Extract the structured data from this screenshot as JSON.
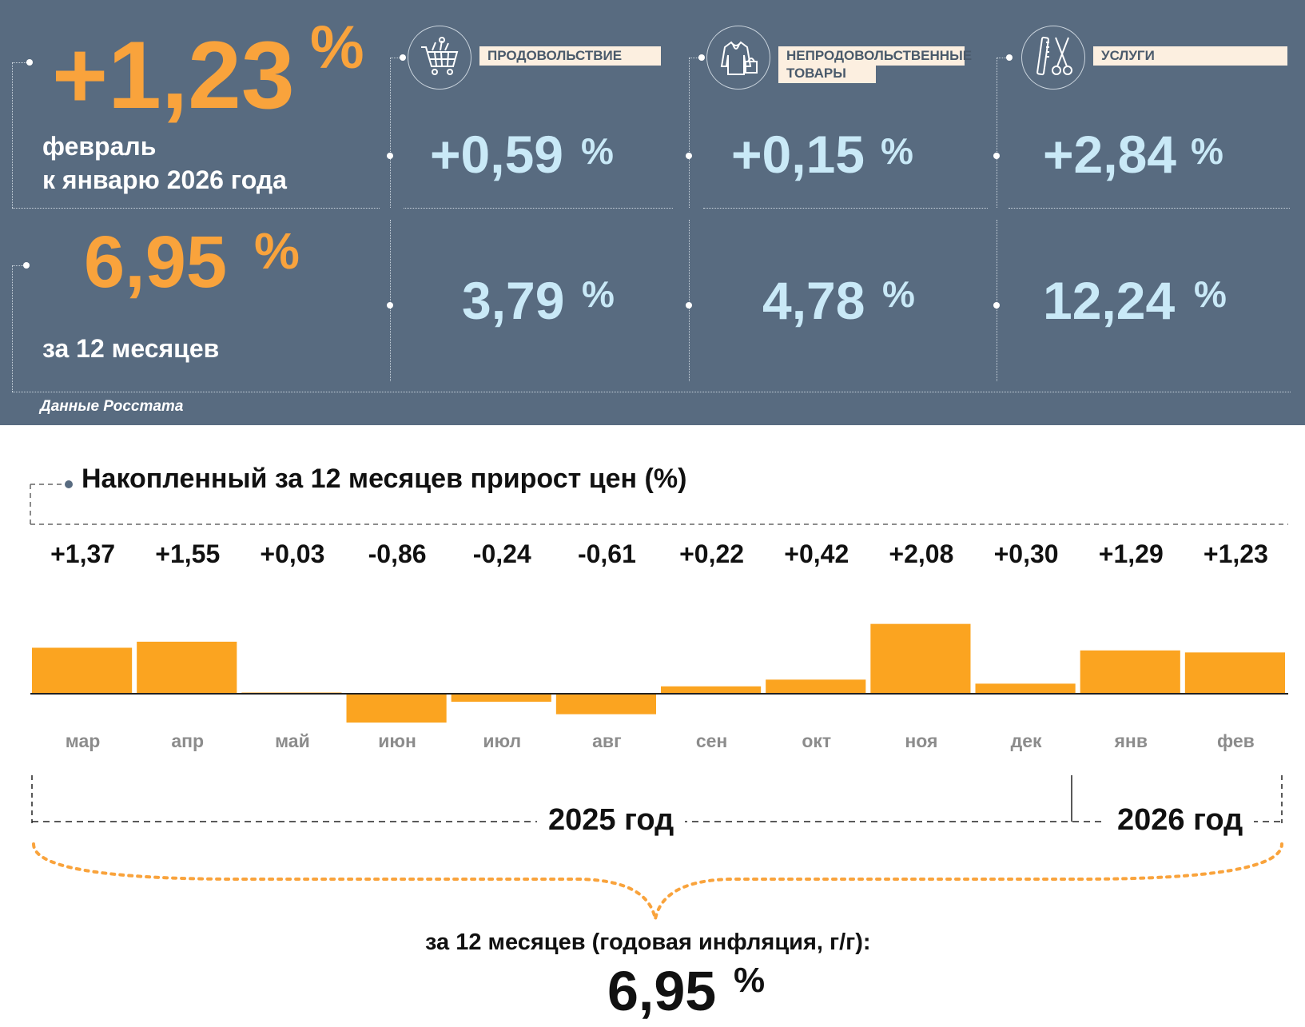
{
  "header": {
    "monthly": {
      "value": "+1,23",
      "pct": "%",
      "caption_line1": "февраль",
      "caption_line2": "к январю 2026 года"
    },
    "annual": {
      "value": "6,95",
      "pct": "%",
      "caption": "за 12 месяцев"
    },
    "categories": [
      {
        "label": "ПРОДОВОЛЬСТВИЕ",
        "icon": "shopping-cart-icon",
        "monthly": "+0,59",
        "annual": "3,79",
        "pct": "%"
      },
      {
        "label_line1": "НЕПРОДОВОЛЬСТВЕННЫЕ",
        "label_line2": "ТОВАРЫ",
        "icon": "clothing-icon",
        "monthly": "+0,15",
        "annual": "4,78",
        "pct": "%"
      },
      {
        "label": "УСЛУГИ",
        "icon": "scissors-comb-icon",
        "monthly": "+2,84",
        "annual": "12,24",
        "pct": "%"
      }
    ],
    "source": "Данные Росстата",
    "colors": {
      "panel": "#586b80",
      "orange": "#f9a33c",
      "light_blue": "#c9e9f7",
      "tag_bg": "#fcefe0"
    }
  },
  "chart_data": {
    "type": "bar",
    "title": "Накопленный за 12 месяцев прирост цен (%)",
    "categories": [
      "мар",
      "апр",
      "май",
      "июн",
      "июл",
      "авг",
      "сен",
      "окт",
      "ноя",
      "дек",
      "янв",
      "фев"
    ],
    "values": [
      1.37,
      1.55,
      0.03,
      -0.86,
      -0.24,
      -0.61,
      0.22,
      0.42,
      2.08,
      0.3,
      1.29,
      1.23
    ],
    "value_labels": [
      "+1,37",
      "+1,55",
      "+0,03",
      "-0,86",
      "-0,24",
      "-0,61",
      "+0,22",
      "+0,42",
      "+2,08",
      "+0,30",
      "+1,29",
      "+1,23"
    ],
    "bar_color": "#fba420",
    "years": [
      {
        "label": "2025 год",
        "months": 10
      },
      {
        "label": "2026 год",
        "months": 2
      }
    ],
    "summary_caption": "за 12 месяцев (годовая инфляция, г/г):",
    "summary_value": "6,95",
    "summary_pct": "%"
  }
}
